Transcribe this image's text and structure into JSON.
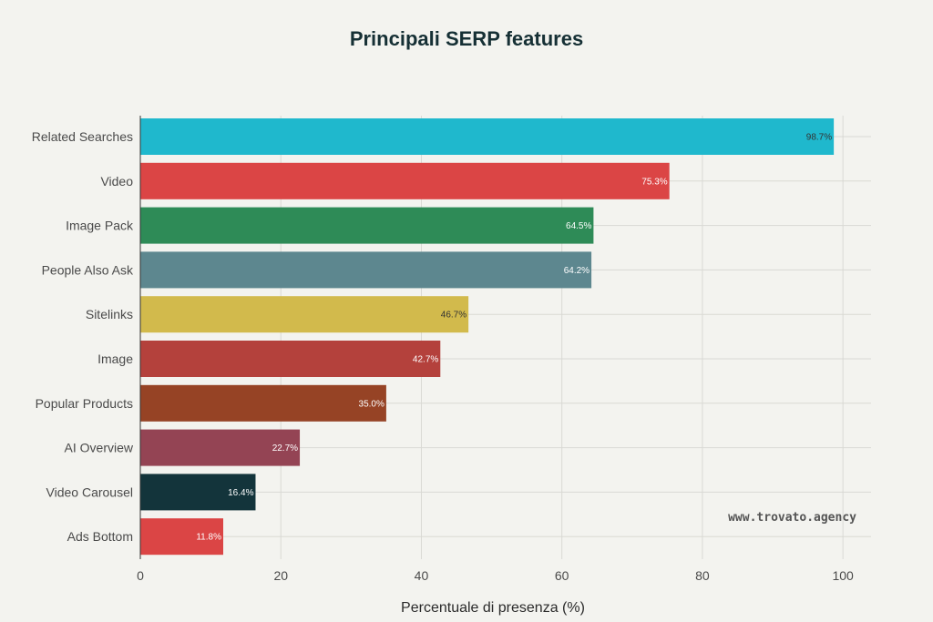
{
  "chart_data": {
    "type": "bar",
    "orientation": "horizontal",
    "title": "Principali SERP features",
    "xlabel": "Percentuale di presenza (%)",
    "ylabel": "",
    "xlim": [
      0,
      104
    ],
    "xticks": [
      0,
      20,
      40,
      60,
      80,
      100
    ],
    "grid": true,
    "categories": [
      "Related Searches",
      "Video",
      "Image Pack",
      "People Also Ask",
      "Sitelinks",
      "Image",
      "Popular Products",
      "AI Overview",
      "Video Carousel",
      "Ads Bottom"
    ],
    "values": [
      98.7,
      75.3,
      64.5,
      64.2,
      46.7,
      42.7,
      35.0,
      22.7,
      16.4,
      11.8
    ],
    "data_labels": [
      "98.7%",
      "75.3%",
      "64.5%",
      "64.2%",
      "46.7%",
      "42.7%",
      "35.0%",
      "22.7%",
      "16.4%",
      "11.8%"
    ],
    "colors": [
      "#1fb8cd",
      "#db4545",
      "#2e8b57",
      "#5d878f",
      "#d2ba4c",
      "#b4413c",
      "#964325",
      "#944454",
      "#13343b",
      "#db4545"
    ],
    "label_colors": [
      "#333333",
      "#ffffff",
      "#ffffff",
      "#ffffff",
      "#333333",
      "#ffffff",
      "#ffffff",
      "#ffffff",
      "#ffffff",
      "#ffffff"
    ]
  },
  "watermark": "www.trovato.agency"
}
